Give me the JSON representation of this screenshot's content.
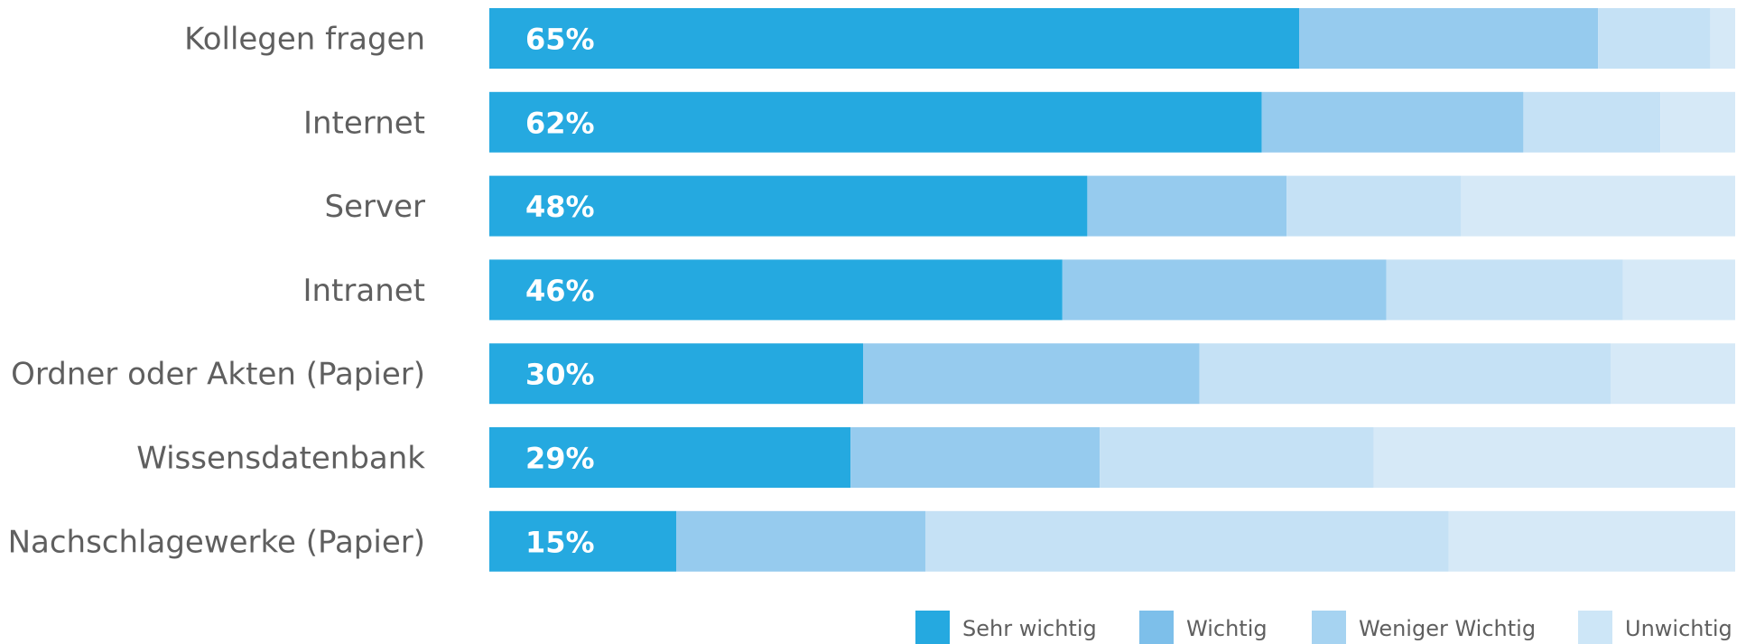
{
  "chart_data": {
    "type": "bar",
    "orientation": "horizontal",
    "stacked": true,
    "categories": [
      "Kollegen fragen",
      "Internet",
      "Server",
      "Intranet",
      "Ordner oder Akten (Papier)",
      "Wissensdatenbank",
      "Nachschlagewerke (Papier)"
    ],
    "series": [
      {
        "name": "Sehr wichtig",
        "color": "#25a9e0",
        "values": [
          65,
          62,
          48,
          46,
          30,
          29,
          15
        ]
      },
      {
        "name": "Wichtig",
        "color": "#96cbee",
        "values": [
          24,
          21,
          16,
          26,
          27,
          20,
          20
        ]
      },
      {
        "name": "Weniger Wichtig",
        "color": "#c5e1f5",
        "values": [
          9,
          11,
          14,
          19,
          33,
          22,
          42
        ]
      },
      {
        "name": "Unwichtig",
        "color": "#d6e9f7",
        "values": [
          2,
          6,
          22,
          9,
          10,
          29,
          23
        ]
      }
    ],
    "value_labels": [
      "65%",
      "62%",
      "48%",
      "46%",
      "30%",
      "29%",
      "15%"
    ],
    "xlim": [
      0,
      100
    ],
    "grid": false,
    "legend_position": "bottom-right",
    "legend_swatch_colors": [
      "#25a9e0",
      "#7dbfea",
      "#a6d3f1",
      "#cde6f7"
    ]
  }
}
